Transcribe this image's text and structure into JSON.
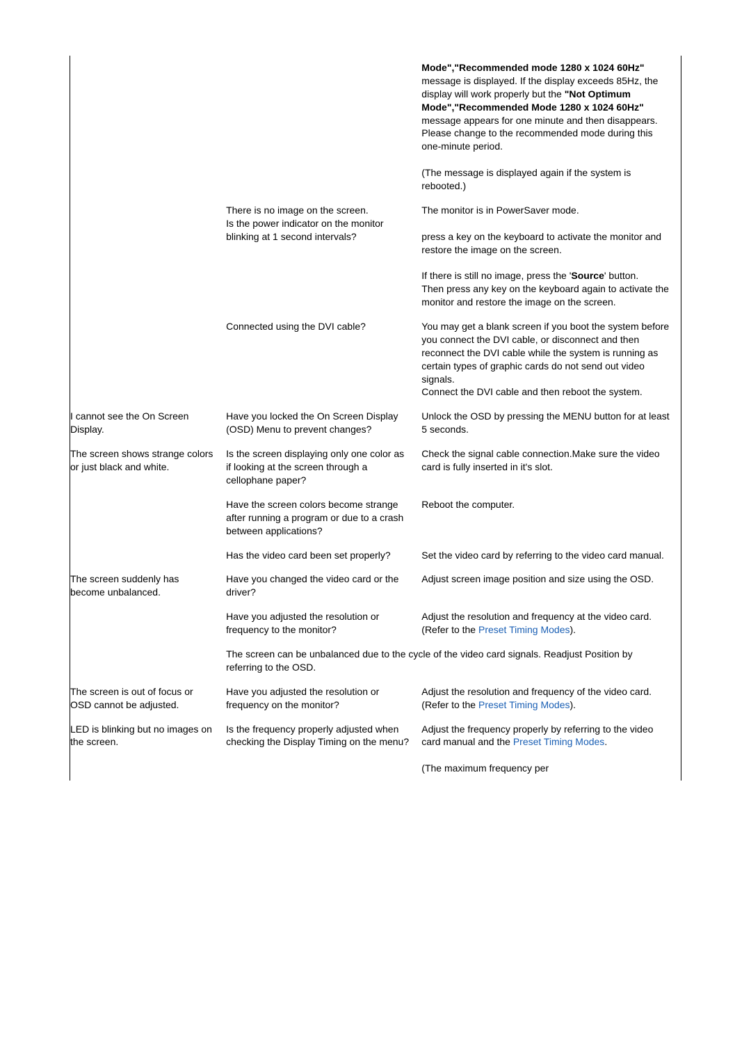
{
  "colors": {
    "text": "#000000",
    "background": "#ffffff",
    "border": "#000000",
    "link": "#1a5fb4"
  },
  "fonts": {
    "family": "Arial, Helvetica, sans-serif",
    "size_pt": 14,
    "line_height": 1.35,
    "bold_weight": 700
  },
  "rows": [
    {
      "symptom": "",
      "check": "",
      "solution_html": "<span class='bold'>Mode\",\"Recommended mode 1280 x 1024 60Hz\"</span> message is displayed. If the display exceeds 85Hz, the display will work properly but the <span class='bold'>\"Not Optimum Mode\",\"Recommended Mode 1280 x 1024 60Hz\"</span> message appears for one minute and then disappears.<br>Please change to the recommended mode during this one-minute period.<br><br>(The message is displayed again if the system is rebooted.)"
    },
    {
      "symptom": "",
      "check": "There is no image on the screen.\nIs the power indicator on the monitor blinking at 1 second intervals?",
      "solution_html": "The monitor is in PowerSaver mode.<br><br>press a key on the keyboard to activate the monitor and restore the image on the screen.<br><br>If there is still no image, press the '<span class='bold'>Source</span>' button.<br>Then press any key on the keyboard again to activate the monitor and restore the image on the screen."
    },
    {
      "symptom": "",
      "check": "Connected using the DVI cable?",
      "solution_html": "You may get a blank screen if you boot the system before you connect the DVI cable, or disconnect and then reconnect the DVI cable while the system is running as certain types of graphic cards do not send out video signals.<br>Connect the DVI cable and then reboot the system."
    },
    {
      "symptom": "I cannot see the On Screen Display.",
      "check": "Have you locked the On Screen Display (OSD) Menu to prevent changes?",
      "solution_html": "Unlock the OSD by pressing the MENU button for at least 5 seconds."
    },
    {
      "symptom": "The screen shows strange colors or just black and white.",
      "check": "Is the screen displaying only one color as if looking at the screen through a cellophane paper?",
      "solution_html": "Check the signal cable connection.Make sure the video card is fully inserted in it's slot."
    },
    {
      "symptom": "",
      "check": "Have the screen colors become strange after running a program or due to a crash between applications?",
      "solution_html": "Reboot the computer."
    },
    {
      "symptom": "",
      "check": "Has the video card been set properly?",
      "solution_html": "Set the video card by referring to the video card manual."
    },
    {
      "symptom": "The screen suddenly has become unbalanced.",
      "check": "Have you changed the video card or the driver?",
      "solution_html": "Adjust screen image position and size using the OSD."
    },
    {
      "symptom": "",
      "check": "Have you adjusted the resolution or frequency to the monitor?",
      "solution_html": "Adjust the resolution and frequency at the video card.<br>(Refer to the <a class='link' data-name='preset-timing-modes-link' data-interactable='true'>Preset Timing Modes</a>)."
    },
    {
      "symptom": "",
      "check": "",
      "solution_html": "",
      "colspan_note": "The screen can be unbalanced due to the cycle of the video card signals. Readjust Position by referring to the OSD."
    },
    {
      "symptom": "The screen is out of focus or OSD cannot be adjusted.",
      "check": "Have you adjusted the resolution or frequency on the monitor?",
      "solution_html": "Adjust the resolution and frequency of the video card.<br>(Refer to the <a class='link' data-name='preset-timing-modes-link' data-interactable='true'>Preset Timing Modes</a>)."
    },
    {
      "symptom": "LED is blinking but no images on the screen.",
      "check": "Is the frequency properly adjusted when checking the Display Timing on the menu?",
      "solution_html": "Adjust the frequency properly by referring to the video card manual and the <a class='link' data-name='preset-timing-modes-link' data-interactable='true'>Preset Timing Modes</a>.<br><br>(The maximum frequency per"
    }
  ]
}
